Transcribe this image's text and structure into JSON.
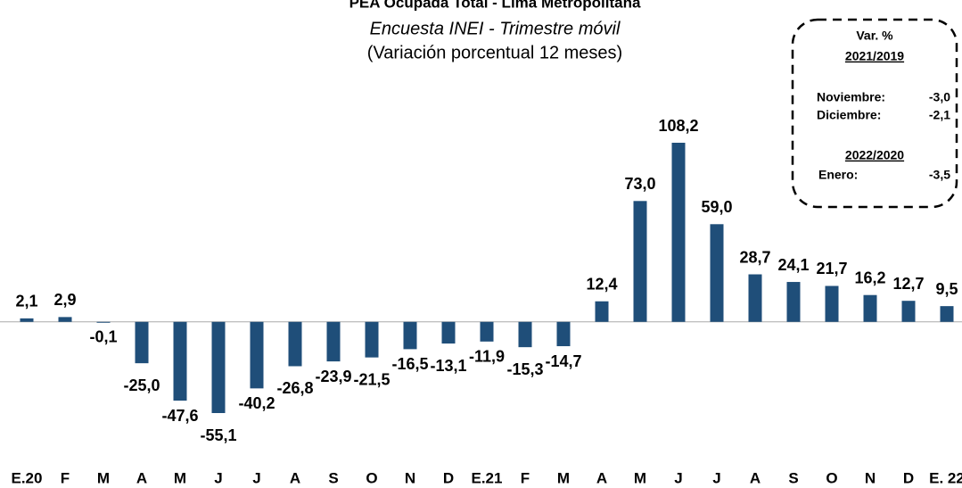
{
  "chart_data": {
    "type": "bar",
    "title": "PEA Ocupada Total - Lima Metropolitana",
    "subtitle": "Encuesta INEI - Trimestre móvil",
    "subtitle2": "(Variación porcentual 12 meses)",
    "categories": [
      "E.20",
      "F",
      "M",
      "A",
      "M",
      "J",
      "J",
      "A",
      "S",
      "O",
      "N",
      "D",
      "E.21",
      "F",
      "M",
      "A",
      "M",
      "J",
      "J",
      "A",
      "S",
      "O",
      "N",
      "D",
      "E. 22"
    ],
    "values": [
      2.1,
      2.9,
      -0.1,
      -25.0,
      -47.6,
      -55.1,
      -40.2,
      -26.8,
      -23.9,
      -21.5,
      -16.5,
      -13.1,
      -11.9,
      -15.3,
      -14.7,
      12.4,
      73.0,
      108.2,
      59.0,
      28.7,
      24.1,
      21.7,
      16.2,
      12.7,
      9.5
    ],
    "value_labels": [
      "2,1",
      "2,9",
      "-0,1",
      "-25,0",
      "-47,6",
      "-55,1",
      "-40,2",
      "-26,8",
      "-23,9",
      "-21,5",
      "-16,5",
      "-13,1",
      "-11,9",
      "-15,3",
      "-14,7",
      "12,4",
      "73,0",
      "108,2",
      "59,0",
      "28,7",
      "24,1",
      "21,7",
      "16,2",
      "12,7",
      "9,5"
    ],
    "color": "#1f4e79",
    "annotation": {
      "heading": "Var. %",
      "period1": "2021/2019",
      "rows1": [
        [
          "Noviembre:",
          "-3,0"
        ],
        [
          "Diciembre:",
          "-2,1"
        ]
      ],
      "period2": "2022/2020",
      "rows2": [
        [
          "Enero:",
          "-3,5"
        ]
      ]
    }
  }
}
